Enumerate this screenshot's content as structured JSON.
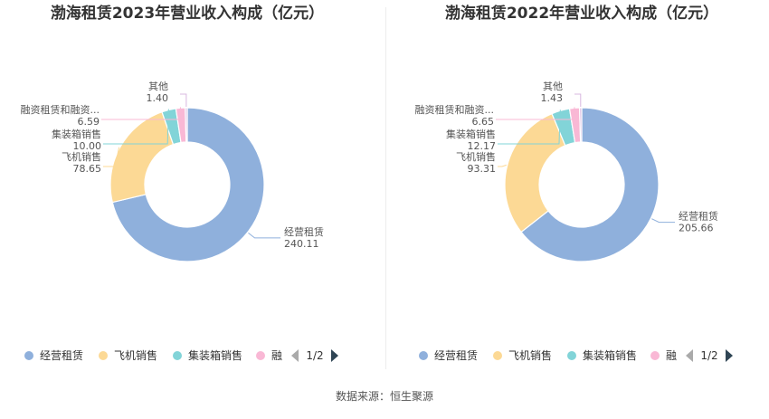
{
  "chart_data": [
    {
      "type": "pie",
      "title": "渤海租赁2023年营业收入构成（亿元）",
      "categories": [
        "经营租赁",
        "飞机销售",
        "集装箱销售",
        "融资租赁和融资...",
        "其他"
      ],
      "values": [
        240.11,
        78.65,
        10.0,
        6.59,
        1.4
      ],
      "value_labels": [
        "240.11",
        "78.65",
        "10.00",
        "6.59",
        "1.40"
      ],
      "colors": [
        "#8fb0dc",
        "#fcd995",
        "#82d4d8",
        "#f9b8d5",
        "#d9b8e0"
      ],
      "legend": {
        "items": [
          "经营租赁",
          "飞机销售",
          "集装箱销售",
          "融"
        ],
        "colors": [
          "#8fb0dc",
          "#fcd995",
          "#82d4d8",
          "#f9b8d5"
        ],
        "page": "1/2",
        "placement": "bottom"
      }
    },
    {
      "type": "pie",
      "title": "渤海租赁2022年营业收入构成（亿元）",
      "categories": [
        "经营租赁",
        "飞机销售",
        "集装箱销售",
        "融资租赁和融资...",
        "其他"
      ],
      "values": [
        205.66,
        93.31,
        12.17,
        6.65,
        1.43
      ],
      "value_labels": [
        "205.66",
        "93.31",
        "12.17",
        "6.65",
        "1.43"
      ],
      "colors": [
        "#8fb0dc",
        "#fcd995",
        "#82d4d8",
        "#f9b8d5",
        "#d9b8e0"
      ],
      "legend": {
        "items": [
          "经营租赁",
          "飞机销售",
          "集装箱销售",
          "融"
        ],
        "colors": [
          "#8fb0dc",
          "#fcd995",
          "#82d4d8",
          "#f9b8d5"
        ],
        "page": "1/2",
        "placement": "bottom"
      }
    }
  ],
  "footer": {
    "source": "数据来源：恒生聚源"
  }
}
